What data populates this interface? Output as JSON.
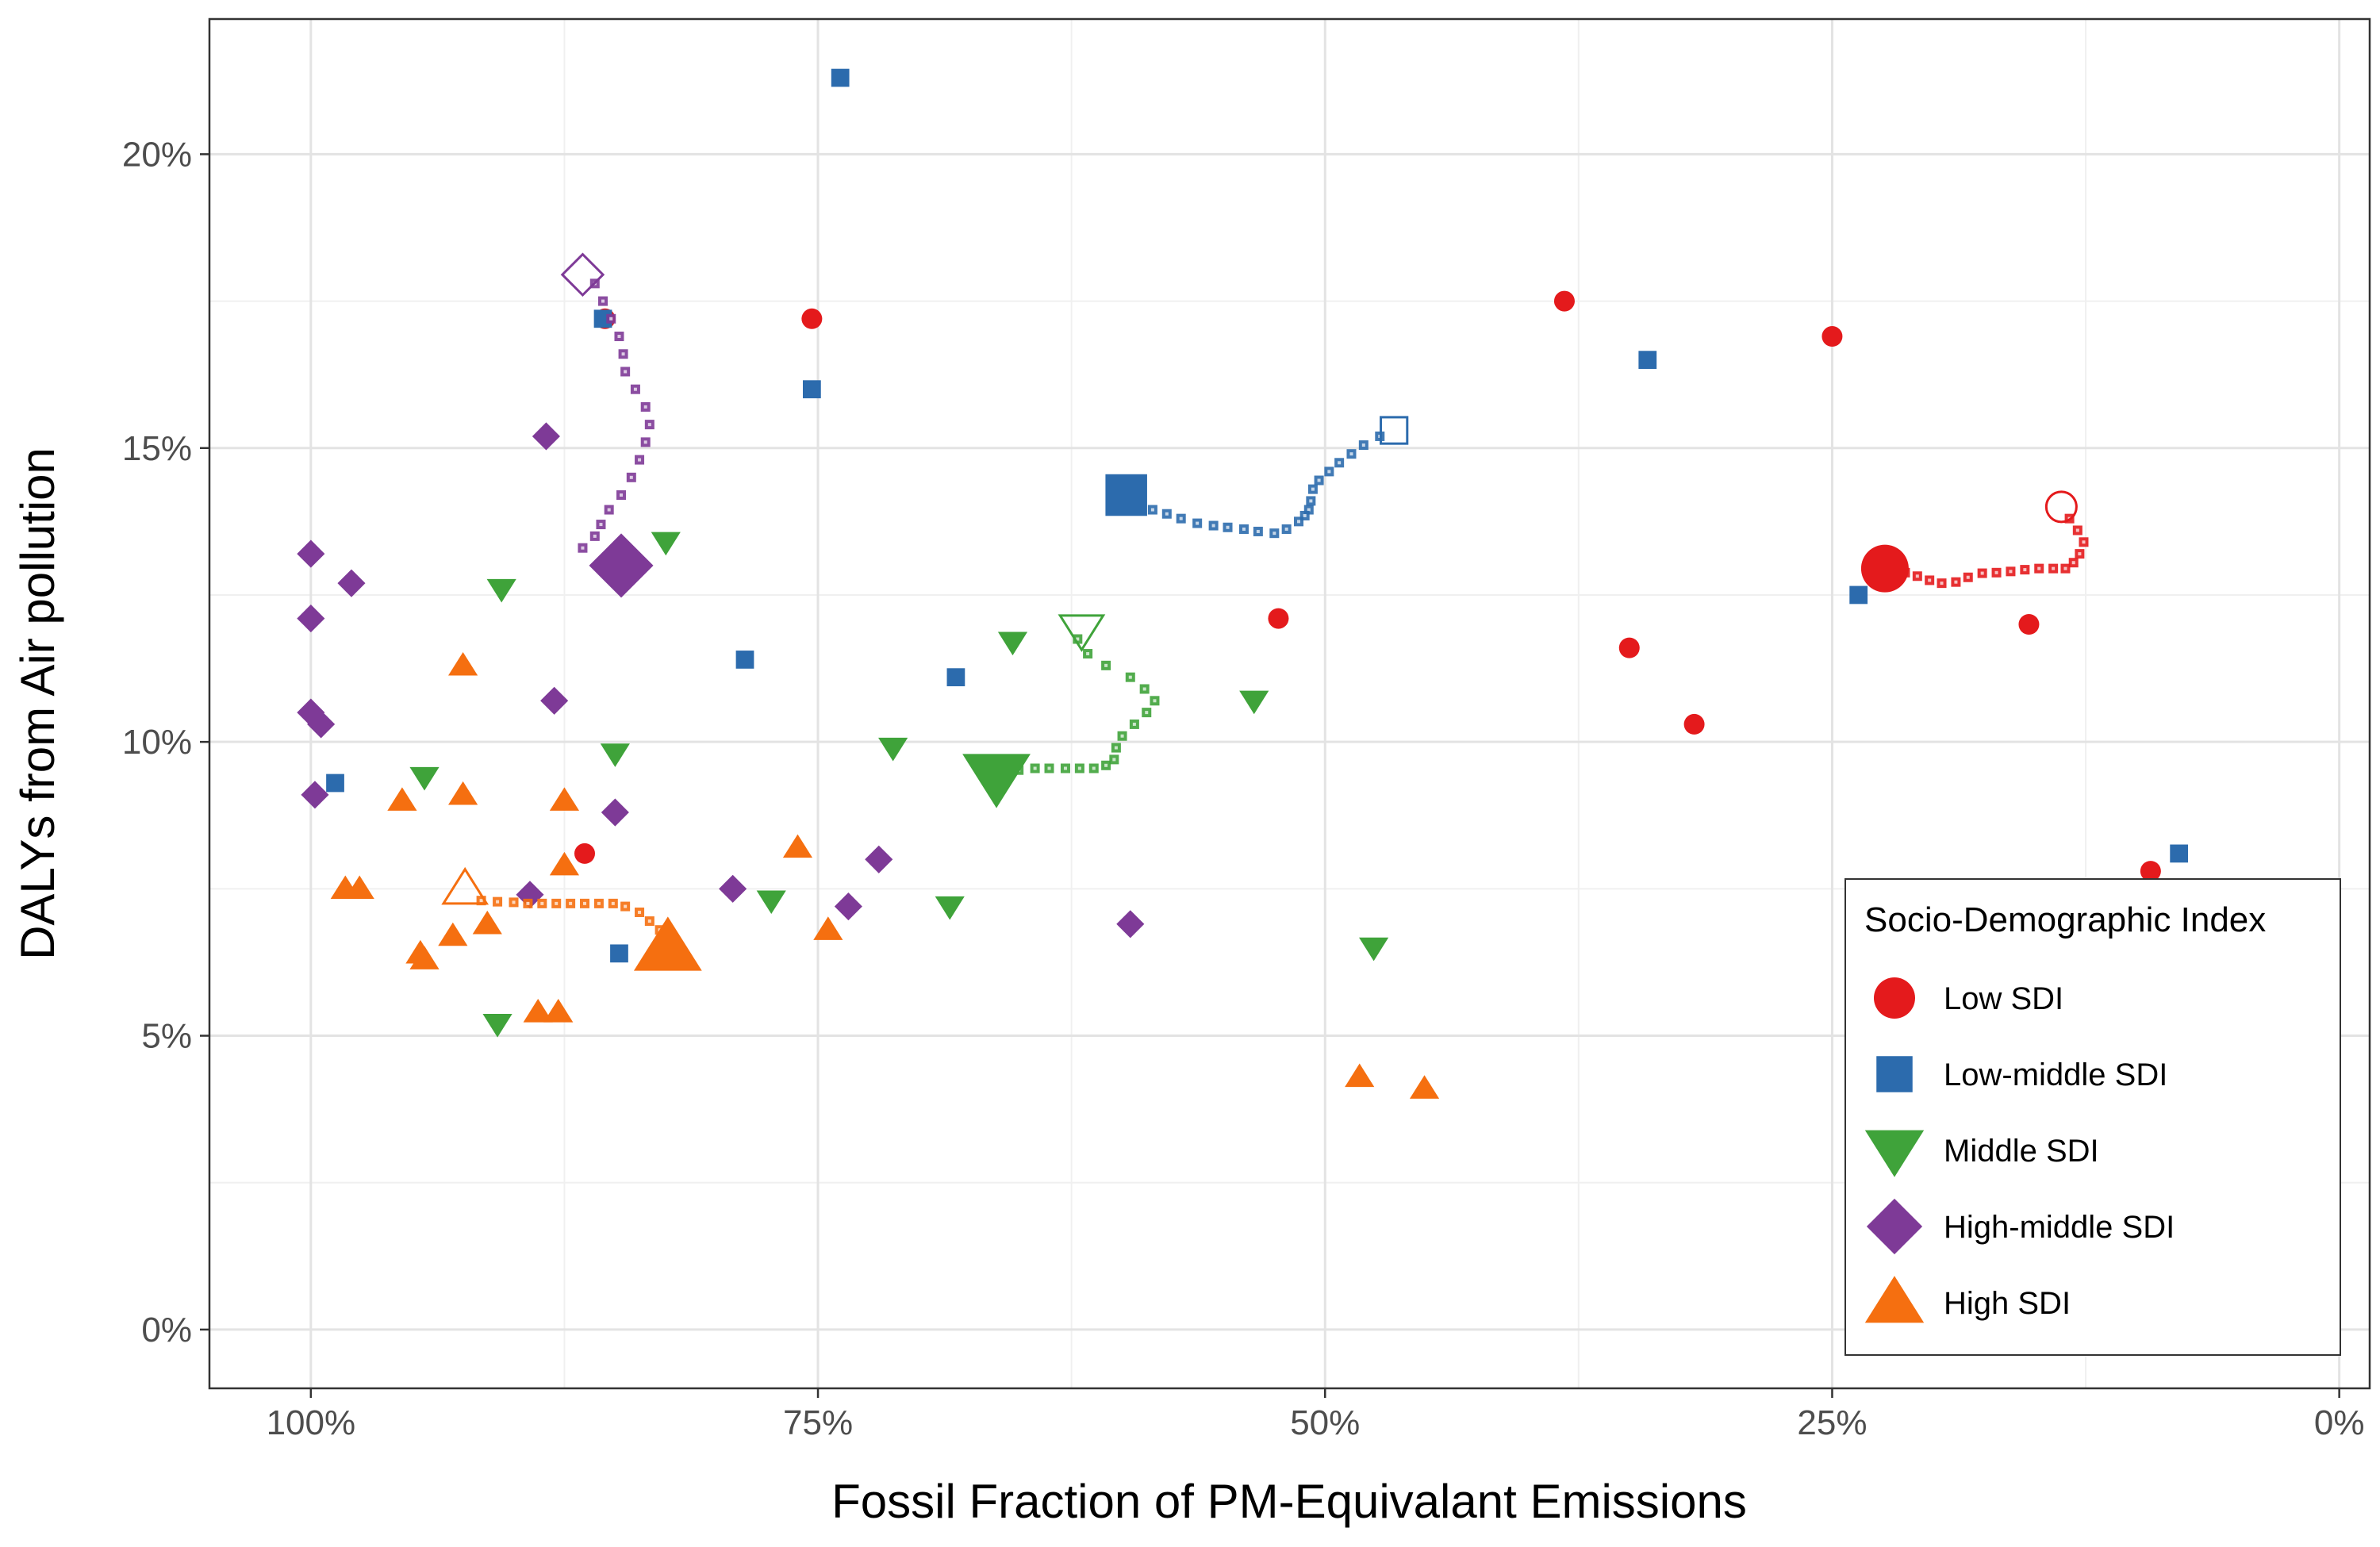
{
  "chart_data": {
    "type": "scatter",
    "xlabel": "Fossil Fraction of PM-Equivalant Emissions",
    "ylabel": "DALYs from Air pollution",
    "x_reversed": true,
    "xlim": [
      105,
      -1.5
    ],
    "ylim": [
      -1,
      22.3
    ],
    "x_ticks": [
      {
        "value": 100,
        "label": "100%"
      },
      {
        "value": 75,
        "label": "75%"
      },
      {
        "value": 50,
        "label": "50%"
      },
      {
        "value": 25,
        "label": "25%"
      },
      {
        "value": 0,
        "label": "0%"
      }
    ],
    "y_ticks": [
      {
        "value": 0,
        "label": "0%"
      },
      {
        "value": 5,
        "label": "5%"
      },
      {
        "value": 10,
        "label": "10%"
      },
      {
        "value": 15,
        "label": "15%"
      },
      {
        "value": 20,
        "label": "20%"
      }
    ],
    "grid": true,
    "legend": {
      "title": "Socio-Demographic Index",
      "position": "bottom-right"
    },
    "series": [
      {
        "name": "Low SDI",
        "shape": "circle",
        "color": "#E41A1C",
        "points": [
          [
            85.5,
            17.2
          ],
          [
            75.3,
            17.2
          ],
          [
            86.5,
            8.1
          ],
          [
            52.3,
            12.1
          ],
          [
            38.2,
            17.5
          ],
          [
            35,
            11.6
          ],
          [
            31.8,
            10.3
          ],
          [
            25,
            16.9
          ],
          [
            15.3,
            12
          ],
          [
            9.3,
            7.8
          ]
        ],
        "trajectory": [
          [
            13.3,
            13.8
          ],
          [
            12.9,
            13.6
          ],
          [
            12.6,
            13.4
          ],
          [
            12.8,
            13.2
          ],
          [
            13.1,
            13.05
          ],
          [
            13.5,
            12.95
          ],
          [
            14.1,
            12.95
          ],
          [
            14.8,
            12.95
          ],
          [
            15.5,
            12.93
          ],
          [
            16.2,
            12.9
          ],
          [
            16.9,
            12.88
          ],
          [
            17.6,
            12.87
          ],
          [
            18.3,
            12.8
          ],
          [
            18.9,
            12.72
          ],
          [
            19.6,
            12.7
          ],
          [
            20.2,
            12.75
          ],
          [
            20.8,
            12.82
          ],
          [
            21.4,
            12.88
          ],
          [
            22,
            12.92
          ]
        ],
        "start": [
          13.7,
          14
        ],
        "end": [
          22.4,
          12.95
        ]
      },
      {
        "name": "Low-middle SDI",
        "shape": "square",
        "color": "#2C6BAD",
        "points": [
          [
            73.9,
            21.3
          ],
          [
            85.6,
            17.2
          ],
          [
            75.3,
            16
          ],
          [
            34.1,
            16.5
          ],
          [
            78.6,
            11.4
          ],
          [
            68.2,
            11.1
          ],
          [
            98.8,
            9.3
          ],
          [
            84.8,
            6.4
          ],
          [
            23.7,
            12.5
          ],
          [
            7.9,
            8.1
          ]
        ],
        "trajectory": [
          [
            47.3,
            15.2
          ],
          [
            48.1,
            15.05
          ],
          [
            48.7,
            14.9
          ],
          [
            49.3,
            14.75
          ],
          [
            49.8,
            14.6
          ],
          [
            50.3,
            14.45
          ],
          [
            50.6,
            14.3
          ],
          [
            50.7,
            14.1
          ],
          [
            50.8,
            13.95
          ],
          [
            51,
            13.85
          ],
          [
            51.3,
            13.75
          ],
          [
            51.9,
            13.62
          ],
          [
            52.5,
            13.55
          ],
          [
            53.3,
            13.58
          ],
          [
            54,
            13.62
          ],
          [
            54.8,
            13.65
          ],
          [
            55.5,
            13.68
          ],
          [
            56.3,
            13.72
          ],
          [
            57.1,
            13.8
          ],
          [
            57.8,
            13.88
          ],
          [
            58.5,
            13.95
          ],
          [
            59.2,
            14.05
          ],
          [
            59.9,
            14.12
          ]
        ],
        "start": [
          46.6,
          15.3
        ],
        "end": [
          59.8,
          14.2
        ]
      },
      {
        "name": "Middle SDI",
        "shape": "triangle-down",
        "color": "#3FA33A",
        "points": [
          [
            82.5,
            13.4
          ],
          [
            90.6,
            12.6
          ],
          [
            85,
            9.8
          ],
          [
            94.4,
            9.4
          ],
          [
            90.8,
            5.2
          ],
          [
            77.3,
            7.3
          ],
          [
            71.3,
            9.9
          ],
          [
            68.5,
            7.2
          ],
          [
            65.4,
            11.7
          ],
          [
            53.5,
            10.7
          ],
          [
            47.6,
            6.5
          ]
        ],
        "trajectory": [
          [
            62.2,
            11.75
          ],
          [
            61.7,
            11.5
          ],
          [
            60.8,
            11.3
          ],
          [
            59.6,
            11.1
          ],
          [
            58.9,
            10.9
          ],
          [
            58.4,
            10.7
          ],
          [
            58.8,
            10.5
          ],
          [
            59.4,
            10.3
          ],
          [
            60,
            10.1
          ],
          [
            60.3,
            9.9
          ],
          [
            60.4,
            9.7
          ],
          [
            60.8,
            9.6
          ],
          [
            61.4,
            9.55
          ],
          [
            62.1,
            9.55
          ],
          [
            62.8,
            9.55
          ],
          [
            63.6,
            9.55
          ],
          [
            64.3,
            9.55
          ],
          [
            65.1,
            9.52
          ],
          [
            65.8,
            9.5
          ],
          [
            66.5,
            9.48
          ]
        ],
        "start": [
          62,
          11.9
        ],
        "end": [
          66.2,
          9.4
        ]
      },
      {
        "name": "High-middle SDI",
        "shape": "diamond",
        "color": "#7E3A97",
        "points": [
          [
            88.4,
            15.2
          ],
          [
            100,
            13.2
          ],
          [
            98,
            12.7
          ],
          [
            100,
            12.1
          ],
          [
            100,
            10.5
          ],
          [
            99.5,
            10.3
          ],
          [
            99.8,
            9.1
          ],
          [
            88,
            10.7
          ],
          [
            85,
            8.8
          ],
          [
            89.2,
            7.4
          ],
          [
            79.2,
            7.5
          ],
          [
            72,
            8
          ],
          [
            73.5,
            7.2
          ],
          [
            59.6,
            6.9
          ]
        ],
        "trajectory": [
          [
            86,
            17.8
          ],
          [
            85.6,
            17.5
          ],
          [
            85.2,
            17.2
          ],
          [
            84.8,
            16.9
          ],
          [
            84.6,
            16.6
          ],
          [
            84.5,
            16.3
          ],
          [
            84,
            16
          ],
          [
            83.5,
            15.7
          ],
          [
            83.3,
            15.4
          ],
          [
            83.5,
            15.1
          ],
          [
            83.8,
            14.8
          ],
          [
            84.2,
            14.5
          ],
          [
            84.7,
            14.2
          ],
          [
            85.3,
            13.95
          ],
          [
            85.7,
            13.7
          ],
          [
            86,
            13.5
          ],
          [
            86.6,
            13.3
          ]
        ],
        "start": [
          86.6,
          17.95
        ],
        "end": [
          84.7,
          13
        ]
      },
      {
        "name": "High SDI",
        "shape": "triangle-up",
        "color": "#F56F10",
        "points": [
          [
            92.5,
            11.3
          ],
          [
            95.5,
            9
          ],
          [
            92.5,
            9.1
          ],
          [
            87.5,
            9
          ],
          [
            98.3,
            7.5
          ],
          [
            97.6,
            7.5
          ],
          [
            87.5,
            7.9
          ],
          [
            93,
            6.7
          ],
          [
            94.4,
            6.3
          ],
          [
            94.6,
            6.4
          ],
          [
            91.3,
            6.9
          ],
          [
            88.8,
            5.4
          ],
          [
            87.8,
            5.4
          ],
          [
            74.5,
            6.8
          ],
          [
            76,
            8.2
          ],
          [
            48.3,
            4.3
          ],
          [
            45.1,
            4.1
          ]
        ],
        "trajectory": [
          [
            91.6,
            7.3
          ],
          [
            90.8,
            7.28
          ],
          [
            90,
            7.27
          ],
          [
            89.3,
            7.25
          ],
          [
            88.6,
            7.25
          ],
          [
            87.9,
            7.25
          ],
          [
            87.2,
            7.25
          ],
          [
            86.5,
            7.25
          ],
          [
            85.8,
            7.25
          ],
          [
            85.1,
            7.25
          ],
          [
            84.5,
            7.2
          ],
          [
            83.8,
            7.1
          ],
          [
            83.3,
            6.95
          ],
          [
            82.8,
            6.8
          ],
          [
            82.5,
            6.65
          ]
        ],
        "start": [
          92.4,
          7.5
        ],
        "end": [
          82.4,
          6.5
        ]
      }
    ]
  }
}
